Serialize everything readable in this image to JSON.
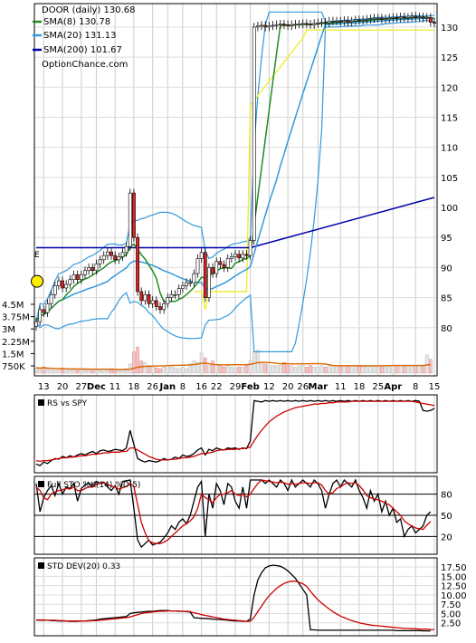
{
  "chart_data": [
    {
      "type": "candlestick",
      "title": "DOOR (daily) 130.68",
      "watermark": "OptionChance.com",
      "ylim": [
        75,
        133
      ],
      "y_ticks": [
        80,
        85,
        90,
        95,
        100,
        105,
        110,
        115,
        120,
        125,
        130
      ],
      "x_ticks": [
        {
          "label": "13",
          "idx": 2
        },
        {
          "label": "20",
          "idx": 7
        },
        {
          "label": "27",
          "idx": 12
        },
        {
          "label": "Dec",
          "idx": 16,
          "bold": true
        },
        {
          "label": "11",
          "idx": 21
        },
        {
          "label": "18",
          "idx": 26
        },
        {
          "label": "26",
          "idx": 31
        },
        {
          "label": "Jan",
          "idx": 35,
          "bold": true
        },
        {
          "label": "8",
          "idx": 39
        },
        {
          "label": "16",
          "idx": 44
        },
        {
          "label": "22",
          "idx": 48
        },
        {
          "label": "29",
          "idx": 53
        },
        {
          "label": "Feb",
          "idx": 57,
          "bold": true
        },
        {
          "label": "12",
          "idx": 62
        },
        {
          "label": "20",
          "idx": 67
        },
        {
          "label": "26",
          "idx": 71
        },
        {
          "label": "Mar",
          "idx": 75,
          "bold": true
        },
        {
          "label": "11",
          "idx": 81
        },
        {
          "label": "18",
          "idx": 86
        },
        {
          "label": "25",
          "idx": 91
        },
        {
          "label": "Apr",
          "idx": 95,
          "bold": true
        },
        {
          "label": "8",
          "idx": 101
        },
        {
          "label": "15",
          "idx": 106
        }
      ],
      "legend": [
        {
          "label": "SMA(8) 130.78",
          "color": "#228b22"
        },
        {
          "label": "SMA(20) 131.13",
          "color": "#3399dd"
        },
        {
          "label": "SMA(200) 101.67",
          "color": "#0000aa"
        }
      ],
      "marker_e": {
        "label": "E",
        "idx": 0,
        "y": 86.5
      },
      "series": [
        {
          "name": "price",
          "close": [
            81,
            83,
            82.5,
            84,
            85.5,
            87,
            87.8,
            86.6,
            87.2,
            88,
            88.8,
            88,
            88.8,
            89.5,
            90,
            89.5,
            90.6,
            91.3,
            92,
            92.6,
            92,
            91.3,
            91.8,
            92.5,
            93.5,
            102.4,
            95,
            86,
            84.5,
            85.5,
            84,
            84.5,
            83.5,
            83,
            84,
            85,
            85.5,
            85.5,
            86.5,
            87,
            87.5,
            87.5,
            89,
            91.5,
            92.5,
            85,
            90,
            89,
            91,
            90.5,
            90,
            91.5,
            91.8,
            92.2,
            91.6,
            92.2,
            92,
            94.5,
            130,
            130.2,
            130.3,
            130,
            130.2,
            130.3,
            130.4,
            130.5,
            130.4,
            130.2,
            130.4,
            130.5,
            130.5,
            130.6,
            130.5,
            130.4,
            130.6,
            130.7,
            130.8,
            130.7,
            131,
            131,
            131,
            130.9,
            131.1,
            130.8,
            131,
            131.2,
            131.1,
            131.2,
            131.3,
            131.4,
            131.5,
            131.5,
            131.3,
            131.4,
            131.5,
            131.6,
            131.5,
            131.7,
            131.5,
            131.6,
            131.8,
            131.6,
            131.7,
            131.5,
            131.6,
            130.8,
            130.68
          ]
        },
        {
          "name": "SMA(8) 130.78"
        },
        {
          "name": "SMA(20) 131.13"
        },
        {
          "name": "SMA(200) 101.67",
          "start": 93.3,
          "end": 101.67
        }
      ],
      "volume_ticks": [
        "4.5M",
        "3.75M",
        "3M",
        "2.25M",
        "1.5M",
        "750K"
      ],
      "volume": [
        0.35,
        0.3,
        0.4,
        0.25,
        0.3,
        0.2,
        0.3,
        0.25,
        0.2,
        0.2,
        0.3,
        0.2,
        0.25,
        0.2,
        0.2,
        0.25,
        0.2,
        0.2,
        0.3,
        0.2,
        0.3,
        0.25,
        0.2,
        0.25,
        0.3,
        0.6,
        1.4,
        1.7,
        0.8,
        0.7,
        0.5,
        0.4,
        0.35,
        0.3,
        0.4,
        0.5,
        0.4,
        0.35,
        0.3,
        0.4,
        0.3,
        0.6,
        0.8,
        0.7,
        1.3,
        1.0,
        0.5,
        0.8,
        0.5,
        0.5,
        0.4,
        0.5,
        0.4,
        0.35,
        0.4,
        0.4,
        0.5,
        0.8,
        1.4,
        1.5,
        0.7,
        0.6,
        0.5,
        0.5,
        0.5,
        0.5,
        0.7,
        0.5,
        0.5,
        0.4,
        0.5,
        0.5,
        0.4,
        0.5,
        0.4,
        0.4,
        0.5,
        0.4,
        0.5,
        0.5,
        0.5,
        0.5,
        0.5,
        0.5,
        0.5,
        0.5,
        0.5,
        0.5,
        0.5,
        0.5,
        0.5,
        0.5,
        0.5,
        0.5,
        0.5,
        0.5,
        0.5,
        0.5,
        0.5,
        0.5,
        0.5,
        0.5,
        0.5,
        0.5,
        1.2,
        0.9
      ]
    },
    {
      "type": "line",
      "title": "RS vs SPY",
      "series": [
        {
          "name": "RS vs SPY",
          "color": "#000000",
          "values": [
            0.07,
            0.05,
            0.1,
            0.08,
            0.12,
            0.15,
            0.14,
            0.18,
            0.16,
            0.19,
            0.17,
            0.2,
            0.22,
            0.2,
            0.23,
            0.25,
            0.22,
            0.26,
            0.27,
            0.25,
            0.26,
            0.28,
            0.27,
            0.26,
            0.3,
            0.55,
            0.35,
            0.15,
            0.12,
            0.1,
            0.12,
            0.11,
            0.1,
            0.12,
            0.15,
            0.13,
            0.14,
            0.17,
            0.15,
            0.2,
            0.18,
            0.19,
            0.22,
            0.27,
            0.3,
            0.2,
            0.28,
            0.26,
            0.3,
            0.28,
            0.27,
            0.3,
            0.29,
            0.3,
            0.28,
            0.3,
            0.29,
            0.4,
            0.97,
            0.96,
            0.95,
            0.97,
            0.96,
            0.97,
            0.96,
            0.97,
            0.96,
            0.97,
            0.96,
            0.97,
            0.96,
            0.97,
            0.96,
            0.97,
            0.96,
            0.97,
            0.96,
            0.97,
            0.96,
            0.97,
            0.96,
            0.97,
            0.96,
            0.97,
            0.96,
            0.97,
            0.96,
            0.97,
            0.96,
            0.97,
            0.96,
            0.97,
            0.96,
            0.97,
            0.96,
            0.97,
            0.96,
            0.97,
            0.96,
            0.97,
            0.96,
            0.97,
            0.96,
            0.83,
            0.82,
            0.83,
            0.86
          ]
        },
        {
          "name": "",
          "color": "#cc0000",
          "values": [
            0.12,
            0.11,
            0.12,
            0.12,
            0.13,
            0.14,
            0.15,
            0.16,
            0.16,
            0.17,
            0.17,
            0.18,
            0.19,
            0.19,
            0.2,
            0.21,
            0.21,
            0.22,
            0.23,
            0.23,
            0.24,
            0.24,
            0.24,
            0.25,
            0.25,
            0.3,
            0.3,
            0.27,
            0.24,
            0.21,
            0.18,
            0.16,
            0.14,
            0.13,
            0.13,
            0.13,
            0.14,
            0.14,
            0.15,
            0.16,
            0.16,
            0.17,
            0.18,
            0.2,
            0.22,
            0.22,
            0.23,
            0.24,
            0.26,
            0.27,
            0.27,
            0.28,
            0.28,
            0.28,
            0.29,
            0.29,
            0.3,
            0.31,
            0.4,
            0.48,
            0.55,
            0.61,
            0.67,
            0.71,
            0.75,
            0.78,
            0.81,
            0.83,
            0.85,
            0.87,
            0.88,
            0.89,
            0.9,
            0.91,
            0.92,
            0.92,
            0.93,
            0.93,
            0.94,
            0.94,
            0.95,
            0.95,
            0.95,
            0.95,
            0.96,
            0.96,
            0.96,
            0.96,
            0.96,
            0.96,
            0.96,
            0.96,
            0.96,
            0.96,
            0.96,
            0.96,
            0.96,
            0.96,
            0.96,
            0.96,
            0.96,
            0.95,
            0.94,
            0.93,
            0.92,
            0.91,
            0.9
          ]
        }
      ]
    },
    {
      "type": "line",
      "title": "Full STO %K(14) %D(5)",
      "ylim": [
        0,
        100
      ],
      "y_ticks": [
        20,
        50,
        80
      ],
      "series": [
        {
          "name": "%K",
          "color": "#000000",
          "values": [
            95,
            55,
            75,
            85,
            92,
            78,
            95,
            80,
            90,
            88,
            95,
            70,
            88,
            93,
            96,
            90,
            98,
            95,
            97,
            90,
            85,
            92,
            80,
            98,
            99,
            100,
            60,
            15,
            5,
            10,
            15,
            8,
            10,
            12,
            18,
            25,
            35,
            30,
            40,
            45,
            38,
            50,
            70,
            90,
            98,
            20,
            80,
            60,
            95,
            85,
            65,
            95,
            90,
            70,
            60,
            90,
            60,
            100,
            100,
            100,
            100,
            95,
            100,
            95,
            90,
            100,
            95,
            85,
            100,
            90,
            95,
            100,
            95,
            90,
            100,
            95,
            85,
            60,
            80,
            95,
            100,
            90,
            100,
            95,
            90,
            100,
            85,
            75,
            60,
            85,
            70,
            80,
            55,
            70,
            50,
            60,
            40,
            45,
            20,
            30,
            35,
            25,
            30,
            35,
            50,
            55
          ]
        },
        {
          "name": "%D",
          "color": "#cc0000",
          "values": [
            90,
            85,
            75,
            72,
            80,
            83,
            85,
            86,
            88,
            87,
            90,
            85,
            85,
            88,
            90,
            90,
            94,
            95,
            96,
            94,
            91,
            90,
            87,
            89,
            91,
            95,
            91,
            65,
            40,
            25,
            14,
            11,
            10,
            10,
            12,
            15,
            20,
            25,
            30,
            35,
            38,
            42,
            48,
            60,
            80,
            75,
            72,
            68,
            75,
            80,
            80,
            82,
            85,
            80,
            78,
            80,
            76,
            80,
            88,
            95,
            100,
            99,
            98,
            97,
            96,
            97,
            96,
            94,
            95,
            94,
            95,
            96,
            96,
            95,
            96,
            96,
            93,
            85,
            80,
            82,
            88,
            90,
            94,
            96,
            95,
            96,
            92,
            86,
            78,
            75,
            73,
            72,
            70,
            67,
            65,
            60,
            55,
            50,
            42,
            38,
            35,
            32,
            31,
            30,
            36,
            41
          ]
        }
      ]
    },
    {
      "type": "line",
      "title": "STD DEV(20) 0.33",
      "ylim": [
        0,
        19
      ],
      "y_ticks": [
        "2.50",
        "5.00",
        "7.50",
        "10.00",
        "12.50",
        "15.00",
        "17.50"
      ],
      "series": [
        {
          "name": "STD DEV(20) 0.33",
          "color": "#000000",
          "values": [
            3.2,
            3.2,
            3.2,
            3.2,
            3.1,
            3.1,
            3.0,
            3.0,
            3.0,
            2.9,
            2.9,
            2.9,
            3.0,
            3.0,
            3.1,
            3.2,
            3.3,
            3.5,
            3.6,
            3.7,
            3.8,
            3.9,
            4.0,
            4.1,
            4.2,
            5.0,
            5.2,
            5.3,
            5.4,
            5.5,
            5.6,
            5.6,
            5.7,
            5.8,
            5.8,
            5.8,
            5.7,
            5.7,
            5.6,
            5.6,
            5.5,
            5.4,
            3.9,
            3.8,
            3.7,
            3.7,
            3.6,
            3.5,
            3.4,
            3.4,
            3.3,
            3.2,
            3.1,
            3.0,
            3.0,
            2.9,
            2.9,
            3.5,
            10.0,
            14.0,
            16.0,
            17.3,
            17.8,
            18.0,
            17.9,
            17.7,
            17.2,
            16.5,
            15.5,
            14.5,
            13.0,
            11.5,
            10.0,
            0.6,
            0.6,
            0.5,
            0.5,
            0.5,
            0.5,
            0.5,
            0.5,
            0.5,
            0.5,
            0.5,
            0.5,
            0.5,
            0.5,
            0.5,
            0.5,
            0.5,
            0.5,
            0.5,
            0.5,
            0.5,
            0.5,
            0.5,
            0.4,
            0.4,
            0.4,
            0.4,
            0.4,
            0.4,
            0.4,
            0.35,
            0.33,
            0.33
          ]
        },
        {
          "name": "",
          "color": "#cc0000",
          "values": [
            3.3,
            3.3,
            3.3,
            3.2,
            3.2,
            3.2,
            3.1,
            3.1,
            3.0,
            3.0,
            3.0,
            3.0,
            3.0,
            3.0,
            3.0,
            3.1,
            3.1,
            3.2,
            3.3,
            3.4,
            3.5,
            3.6,
            3.7,
            3.8,
            3.9,
            4.1,
            4.4,
            4.7,
            5.0,
            5.2,
            5.3,
            5.4,
            5.5,
            5.6,
            5.6,
            5.7,
            5.7,
            5.7,
            5.7,
            5.6,
            5.6,
            5.5,
            5.2,
            5.0,
            4.7,
            4.5,
            4.3,
            4.1,
            3.9,
            3.7,
            3.5,
            3.4,
            3.3,
            3.2,
            3.1,
            3.0,
            2.9,
            2.9,
            4.0,
            5.5,
            7.0,
            8.5,
            9.8,
            10.8,
            11.8,
            12.5,
            13.1,
            13.5,
            13.7,
            13.7,
            13.4,
            13.0,
            12.3,
            11.0,
            9.8,
            8.7,
            7.8,
            7.0,
            6.2,
            5.5,
            4.9,
            4.3,
            3.9,
            3.5,
            3.1,
            2.8,
            2.5,
            2.3,
            2.1,
            1.9,
            1.8,
            1.7,
            1.6,
            1.5,
            1.4,
            1.3,
            1.2,
            1.1,
            1.0,
            1.0,
            0.9,
            0.9,
            0.8,
            0.8,
            0.8,
            0.7,
            0.7
          ]
        }
      ]
    }
  ]
}
